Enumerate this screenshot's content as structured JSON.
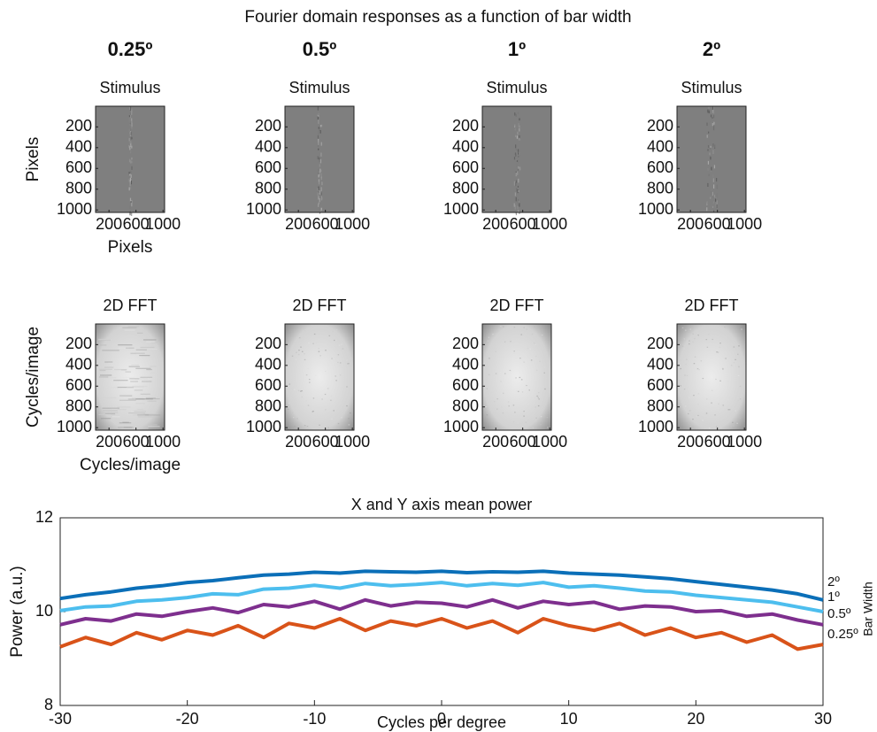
{
  "suptitle": "Fourier domain responses as a function of bar width",
  "column_titles": [
    "0.25º",
    "0.5º",
    "1º",
    "2º"
  ],
  "chart_data": [
    {
      "type": "image",
      "title": "Stimulus",
      "xlabel": "Pixels",
      "ylabel": "Pixels",
      "xlim": [
        1,
        1024
      ],
      "ylim": [
        1,
        1024
      ],
      "y_direction": "reverse",
      "xticks": [
        200,
        600,
        1000
      ],
      "yticks": [
        200,
        400,
        600,
        800,
        1000
      ],
      "colormap": "gray"
    },
    {
      "type": "image",
      "title": "Stimulus",
      "xlim": [
        1,
        1024
      ],
      "ylim": [
        1,
        1024
      ],
      "y_direction": "reverse",
      "xticks": [
        200,
        600,
        1000
      ],
      "yticks": [
        200,
        400,
        600,
        800,
        1000
      ],
      "colormap": "gray"
    },
    {
      "type": "image",
      "title": "Stimulus",
      "xlim": [
        1,
        1024
      ],
      "ylim": [
        1,
        1024
      ],
      "y_direction": "reverse",
      "xticks": [
        200,
        600,
        1000
      ],
      "yticks": [
        200,
        400,
        600,
        800,
        1000
      ],
      "colormap": "gray"
    },
    {
      "type": "image",
      "title": "Stimulus",
      "xlim": [
        1,
        1024
      ],
      "ylim": [
        1,
        1024
      ],
      "y_direction": "reverse",
      "xticks": [
        200,
        600,
        1000
      ],
      "yticks": [
        200,
        400,
        600,
        800,
        1000
      ],
      "colormap": "gray"
    },
    {
      "type": "image",
      "title": "2D FFT",
      "xlabel": "Cycles/image",
      "ylabel": "Cycles/image",
      "xlim": [
        1,
        1024
      ],
      "ylim": [
        1,
        1024
      ],
      "y_direction": "reverse",
      "xticks": [
        200,
        600,
        1000
      ],
      "yticks": [
        200,
        400,
        600,
        800,
        1000
      ],
      "colormap": "gray"
    },
    {
      "type": "image",
      "title": "2D FFT",
      "xlim": [
        1,
        1024
      ],
      "ylim": [
        1,
        1024
      ],
      "y_direction": "reverse",
      "xticks": [
        200,
        600,
        1000
      ],
      "yticks": [
        200,
        400,
        600,
        800,
        1000
      ],
      "colormap": "gray"
    },
    {
      "type": "image",
      "title": "2D FFT",
      "xlim": [
        1,
        1024
      ],
      "ylim": [
        1,
        1024
      ],
      "y_direction": "reverse",
      "xticks": [
        200,
        600,
        1000
      ],
      "yticks": [
        200,
        400,
        600,
        800,
        1000
      ],
      "colormap": "gray"
    },
    {
      "type": "image",
      "title": "2D FFT",
      "xlim": [
        1,
        1024
      ],
      "ylim": [
        1,
        1024
      ],
      "y_direction": "reverse",
      "xticks": [
        200,
        600,
        1000
      ],
      "yticks": [
        200,
        400,
        600,
        800,
        1000
      ],
      "colormap": "gray"
    },
    {
      "type": "line",
      "title": "X and Y axis mean power",
      "xlabel": "Cycles per degree",
      "ylabel": "Power (a.u.)",
      "x": [
        -30,
        -28,
        -26,
        -24,
        -22,
        -20,
        -18,
        -16,
        -14,
        -12,
        -10,
        -8,
        -6,
        -4,
        -2,
        0,
        2,
        4,
        6,
        8,
        10,
        12,
        14,
        16,
        18,
        20,
        22,
        24,
        26,
        28,
        30
      ],
      "series": [
        {
          "name": "2º",
          "color": "#0b6fb8",
          "values": [
            10.28,
            10.36,
            10.42,
            10.5,
            10.55,
            10.62,
            10.66,
            10.72,
            10.78,
            10.8,
            10.84,
            10.82,
            10.86,
            10.85,
            10.84,
            10.86,
            10.83,
            10.85,
            10.84,
            10.86,
            10.82,
            10.8,
            10.78,
            10.74,
            10.7,
            10.64,
            10.58,
            10.52,
            10.46,
            10.38,
            10.25
          ]
        },
        {
          "name": "1º",
          "color": "#4dbeee",
          "values": [
            10.02,
            10.1,
            10.12,
            10.22,
            10.25,
            10.3,
            10.38,
            10.36,
            10.48,
            10.5,
            10.56,
            10.5,
            10.6,
            10.55,
            10.58,
            10.62,
            10.55,
            10.6,
            10.56,
            10.62,
            10.52,
            10.55,
            10.5,
            10.44,
            10.42,
            10.35,
            10.3,
            10.25,
            10.2,
            10.1,
            10.0
          ]
        },
        {
          "name": "0.5º",
          "color": "#7e2f8e",
          "values": [
            9.72,
            9.85,
            9.8,
            9.95,
            9.9,
            10.0,
            10.08,
            9.98,
            10.15,
            10.1,
            10.22,
            10.05,
            10.25,
            10.12,
            10.2,
            10.18,
            10.1,
            10.25,
            10.08,
            10.22,
            10.15,
            10.2,
            10.05,
            10.12,
            10.1,
            10.0,
            10.02,
            9.9,
            9.95,
            9.82,
            9.72
          ]
        },
        {
          "name": "0.25º",
          "color": "#d95319",
          "values": [
            9.25,
            9.45,
            9.3,
            9.55,
            9.4,
            9.6,
            9.5,
            9.7,
            9.45,
            9.75,
            9.65,
            9.85,
            9.6,
            9.8,
            9.7,
            9.85,
            9.65,
            9.8,
            9.55,
            9.85,
            9.7,
            9.6,
            9.75,
            9.5,
            9.65,
            9.45,
            9.55,
            9.35,
            9.5,
            9.2,
            9.3
          ]
        }
      ],
      "xlim": [
        -30,
        30
      ],
      "ylim": [
        8,
        12
      ],
      "xticks": [
        -30,
        -20,
        -10,
        0,
        10,
        20,
        30
      ],
      "yticks": [
        8,
        10,
        12
      ],
      "legend_title": "Bar Width",
      "legend": "right"
    }
  ]
}
